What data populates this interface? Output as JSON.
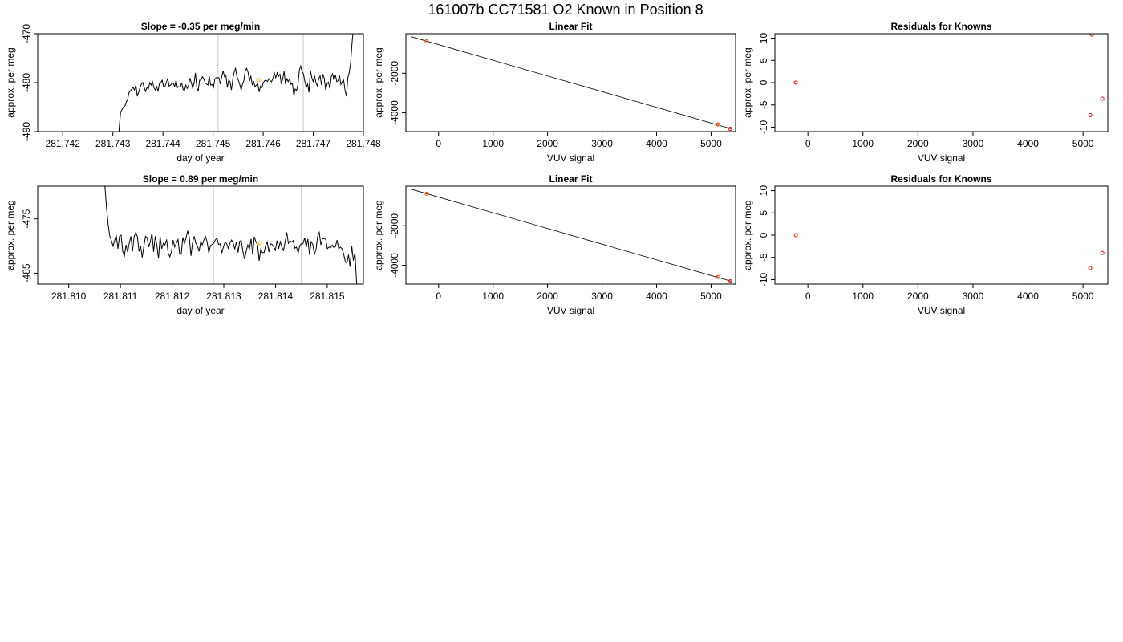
{
  "figure": {
    "title": "161007b     CC71581   O2 Known in Position  8"
  },
  "chart_data": [
    {
      "type": "line",
      "title": "Slope =  -0.35  per meg/min",
      "xlabel": "day of year",
      "ylabel": "approx. per meg",
      "xlim": [
        281.7415,
        281.748
      ],
      "ylim": [
        -490,
        -470
      ],
      "x_ticks": [
        "281.742",
        "281.743",
        "281.744",
        "281.745",
        "281.746",
        "281.747",
        "281.748"
      ],
      "y_ticks": [
        "-470",
        "-480",
        "-490"
      ],
      "vlines": [
        281.7451,
        281.7468
      ],
      "x_start": 281.7431,
      "x_end": 281.7478,
      "series": [
        {
          "values": [
            -494,
            -489,
            -486,
            -485.5,
            -485,
            -484.8,
            -484,
            -483.5,
            -482,
            -481.7,
            -481.3,
            -481,
            -481.5,
            -480.5,
            -482.8,
            -482,
            -481,
            -480.3,
            -480,
            -481,
            -481.8,
            -481,
            -481.3,
            -480,
            -480.5,
            -479.8,
            -481,
            -481.5,
            -480.8,
            -481.8,
            -480.2,
            -480,
            -479.5,
            -480.8,
            -480.8,
            -479.9,
            -479.2,
            -480.7,
            -480.5,
            -480.2,
            -480.1,
            -480.8,
            -479.5,
            -481,
            -480.8,
            -481,
            -480,
            -481.3,
            -481.7,
            -480.5,
            -481.2,
            -480.7,
            -479.1,
            -480,
            -481.2,
            -480.1,
            -478,
            -481,
            -481.7,
            -479.5,
            -479.5,
            -478.8,
            -479.2,
            -480,
            -480.3,
            -480.5,
            -478.7,
            -480.5,
            -480.4,
            -481,
            -479.3,
            -479,
            -479,
            -479,
            -480.3,
            -478.7,
            -477.6,
            -478.8,
            -478.5,
            -481,
            -479.5,
            -479.8,
            -481.5,
            -479.2,
            -477.8,
            -477.1,
            -478.8,
            -479.5,
            -480.4,
            -481.5,
            -480.3,
            -479.5,
            -477.5,
            -477.1,
            -477.9,
            -479.7,
            -478.6,
            -480.4,
            -479.8,
            -480.8,
            -480.5,
            -480.3,
            -481.9,
            -480.7,
            -481,
            -480,
            -479.6,
            -479.5,
            -479.8,
            -479.2,
            -479.6,
            -479.8,
            -479.1,
            -478.1,
            -479,
            -478,
            -478.7,
            -478.3,
            -480.3,
            -479.3,
            -477.7,
            -480.3,
            -479.2,
            -479.8,
            -479.3,
            -480.4,
            -480.1,
            -482.7,
            -481.3,
            -481.6,
            -480.5,
            -477.4,
            -476.6,
            -477.8,
            -478.2,
            -479.8,
            -481,
            -480.3,
            -482,
            -477.5,
            -479,
            -479.8,
            -478.6,
            -480,
            -480.7,
            -479.2,
            -478.6,
            -480.5,
            -478.3,
            -479.1,
            -481.5,
            -480.3,
            -479.9,
            -481.2,
            -478.8,
            -478.2,
            -479.5,
            -478.4,
            -479.8,
            -479.6,
            -478.5,
            -480.4,
            -479.8,
            -479.5,
            -481.5,
            -482.8,
            -479,
            -478,
            -476,
            -472,
            -469
          ]
        },
        {
          "values": [],
          "points": [
            {
              "x": 281.7459,
              "y": -479.5
            }
          ]
        }
      ]
    },
    {
      "type": "scatter",
      "title": "Linear Fit",
      "xlabel": "VUV signal",
      "ylabel": "approx. per meg",
      "xlim": [
        -600,
        5450
      ],
      "ylim": [
        -4950,
        0
      ],
      "x_ticks": [
        "0",
        "1000",
        "2000",
        "3000",
        "4000",
        "5000"
      ],
      "y_ticks": [
        "-2000",
        "-4000"
      ],
      "fit_line": {
        "x": [
          -500,
          5370
        ],
        "y": [
          -155,
          -4810
        ]
      },
      "series": [
        {
          "values": [],
          "points": [
            {
              "x": -220,
              "y": -380
            },
            {
              "x": 5130,
              "y": -4590
            },
            {
              "x": 5350,
              "y": -4810
            }
          ]
        },
        {
          "values": [],
          "points": [
            {
              "x": -220,
              "y": -380
            },
            {
              "x": 5140,
              "y": -4595
            }
          ]
        }
      ]
    },
    {
      "type": "scatter",
      "title": "Residuals for Knowns",
      "xlabel": "VUV signal",
      "ylabel": "approx. per meg",
      "xlim": [
        -600,
        5450
      ],
      "ylim": [
        -11,
        11
      ],
      "x_ticks": [
        "0",
        "1000",
        "2000",
        "3000",
        "4000",
        "5000"
      ],
      "y_ticks": [
        "10",
        "5",
        "0",
        "-5",
        "-10"
      ],
      "series": [
        {
          "values": [],
          "points": [
            {
              "x": -220,
              "y": 0
            },
            {
              "x": 5160,
              "y": 10.8
            },
            {
              "x": 5350,
              "y": -3.6
            },
            {
              "x": 5130,
              "y": -7.3
            }
          ]
        }
      ]
    },
    {
      "type": "line",
      "title": "Slope =  0.89  per meg/min",
      "xlabel": "day of year",
      "ylabel": "approx. per meg",
      "xlim": [
        281.8094,
        281.8157
      ],
      "ylim": [
        -487,
        -469
      ],
      "x_ticks": [
        "281.810",
        "281.811",
        "281.812",
        "281.813",
        "281.814",
        "281.815"
      ],
      "y_ticks": [
        "-475",
        "-485"
      ],
      "vlines": [
        281.8128,
        281.8145
      ],
      "x_start": 281.8107,
      "x_end": 281.8156,
      "series": [
        {
          "values": [
            -469,
            -473,
            -476,
            -478.2,
            -479,
            -480,
            -479,
            -478,
            -480.5,
            -478.2,
            -478,
            -481,
            -481.8,
            -479.8,
            -481.1,
            -479.5,
            -478.2,
            -481,
            -478.3,
            -477.5,
            -478.3,
            -481,
            -480,
            -482.1,
            -480,
            -478.2,
            -478.5,
            -480.2,
            -479.1,
            -477.6,
            -481.1,
            -478.2,
            -479.9,
            -482.3,
            -478.2,
            -480.5,
            -479.5,
            -479.8,
            -478.8,
            -481.3,
            -482,
            -481,
            -478.9,
            -480.2,
            -479.5,
            -478.8,
            -481.3,
            -481.5,
            -478.4,
            -479.5,
            -478.4,
            -477.2,
            -478.4,
            -481.8,
            -479.3,
            -478.2,
            -479.5,
            -480,
            -481,
            -479.2,
            -479.8,
            -478.8,
            -478.3,
            -479.3,
            -481.3,
            -479.9,
            -479.7,
            -479.5,
            -478.9,
            -478.5,
            -479.7,
            -479.6,
            -481.3,
            -480.2,
            -479.3,
            -479.6,
            -480.4,
            -479.5,
            -478.9,
            -479.4,
            -480.6,
            -479.2,
            -481.2,
            -479.1,
            -479,
            -481,
            -482.4,
            -481,
            -479.8,
            -480.6,
            -478.7,
            -481.6,
            -478.3,
            -479.2,
            -479.8,
            -482.7,
            -480.6,
            -481.2,
            -481.2,
            -479.9,
            -479.3,
            -481.1,
            -479.6,
            -479.7,
            -480.2,
            -480.8,
            -479,
            -480.5,
            -479.2,
            -480.2,
            -480.8,
            -479.2,
            -477.5,
            -479.5,
            -479,
            -479.3,
            -479,
            -480.4,
            -480.2,
            -481.3,
            -479.9,
            -479.6,
            -479.6,
            -478.5,
            -480.2,
            -478.7,
            -481.6,
            -479.2,
            -479.7,
            -481.5,
            -480.7,
            -478.2,
            -477.5,
            -479.8,
            -478.7,
            -478.6,
            -478.8,
            -480.5,
            -480.2,
            -480.3,
            -479.8,
            -480.3,
            -480.1,
            -478.9,
            -480.5,
            -480.2,
            -480.5,
            -481.4,
            -482.8,
            -483.2,
            -481.6,
            -483.8,
            -480,
            -482.7,
            -481.2,
            -486.7,
            -489
          ]
        },
        {
          "values": [],
          "points": [
            {
              "x": 281.8137,
              "y": -479.5
            }
          ]
        }
      ]
    },
    {
      "type": "scatter",
      "title": "Linear Fit",
      "xlabel": "VUV signal",
      "ylabel": "approx. per meg",
      "xlim": [
        -600,
        5450
      ],
      "ylim": [
        -4950,
        0
      ],
      "x_ticks": [
        "0",
        "1000",
        "2000",
        "3000",
        "4000",
        "5000"
      ],
      "y_ticks": [
        "-2000",
        "-4000"
      ],
      "fit_line": {
        "x": [
          -500,
          5370
        ],
        "y": [
          -155,
          -4810
        ]
      },
      "series": [
        {
          "values": [],
          "points": [
            {
              "x": -220,
              "y": -380
            },
            {
              "x": 5130,
              "y": -4590
            },
            {
              "x": 5350,
              "y": -4810
            }
          ]
        },
        {
          "values": [],
          "points": [
            {
              "x": -220,
              "y": -380
            },
            {
              "x": 5140,
              "y": -4595
            }
          ]
        }
      ]
    },
    {
      "type": "scatter",
      "title": "Residuals for Knowns",
      "xlabel": "VUV signal",
      "ylabel": "approx. per meg",
      "xlim": [
        -600,
        5450
      ],
      "ylim": [
        -11,
        11
      ],
      "x_ticks": [
        "0",
        "1000",
        "2000",
        "3000",
        "4000",
        "5000"
      ],
      "y_ticks": [
        "10",
        "5",
        "0",
        "-5",
        "-10"
      ],
      "series": [
        {
          "values": [],
          "points": [
            {
              "x": -220,
              "y": 0
            },
            {
              "x": 5350,
              "y": -4
            },
            {
              "x": 5130,
              "y": -7.4
            }
          ]
        }
      ]
    }
  ],
  "style": {
    "line_color": "#000000",
    "vline_color": "#c8c8c8",
    "known_color": "#ff0000",
    "highlight_color": "#ffa500",
    "frame_color": "#000000"
  }
}
